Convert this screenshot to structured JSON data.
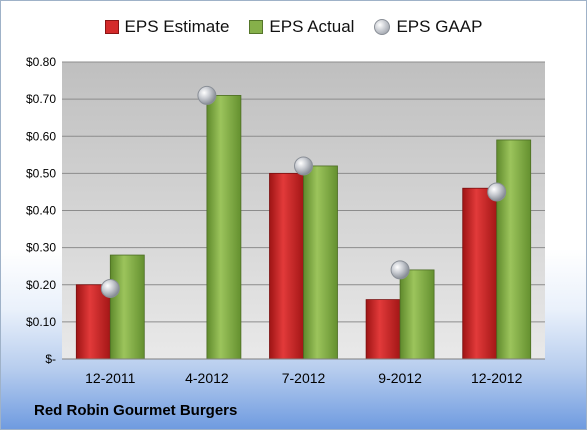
{
  "chart_data": {
    "type": "bar",
    "title": "",
    "xlabel": "",
    "ylabel": "",
    "categories": [
      "12-2011",
      "4-2012",
      "7-2012",
      "9-2012",
      "12-2012"
    ],
    "series": [
      {
        "name": "EPS Estimate",
        "kind": "bar",
        "color": "#d42a2a",
        "values": [
          0.2,
          null,
          0.5,
          0.16,
          0.46
        ]
      },
      {
        "name": "EPS Actual",
        "kind": "bar",
        "color": "#86b04a",
        "values": [
          0.28,
          0.71,
          0.52,
          0.24,
          0.59
        ]
      },
      {
        "name": "EPS GAAP",
        "kind": "marker",
        "color": "#b7bac0",
        "values": [
          0.19,
          0.71,
          0.52,
          0.24,
          0.45
        ]
      }
    ],
    "ylim": [
      0,
      0.8
    ],
    "yticks": [
      {
        "value": 0.0,
        "label": "$-"
      },
      {
        "value": 0.1,
        "label": "$0.10"
      },
      {
        "value": 0.2,
        "label": "$0.20"
      },
      {
        "value": 0.3,
        "label": "$0.30"
      },
      {
        "value": 0.4,
        "label": "$0.40"
      },
      {
        "value": 0.5,
        "label": "$0.50"
      },
      {
        "value": 0.6,
        "label": "$0.60"
      },
      {
        "value": 0.7,
        "label": "$0.70"
      },
      {
        "value": 0.8,
        "label": "$0.80"
      }
    ],
    "grid": true,
    "legend_position": "top"
  },
  "footer": {
    "title": "Red Robin Gourmet Burgers"
  }
}
